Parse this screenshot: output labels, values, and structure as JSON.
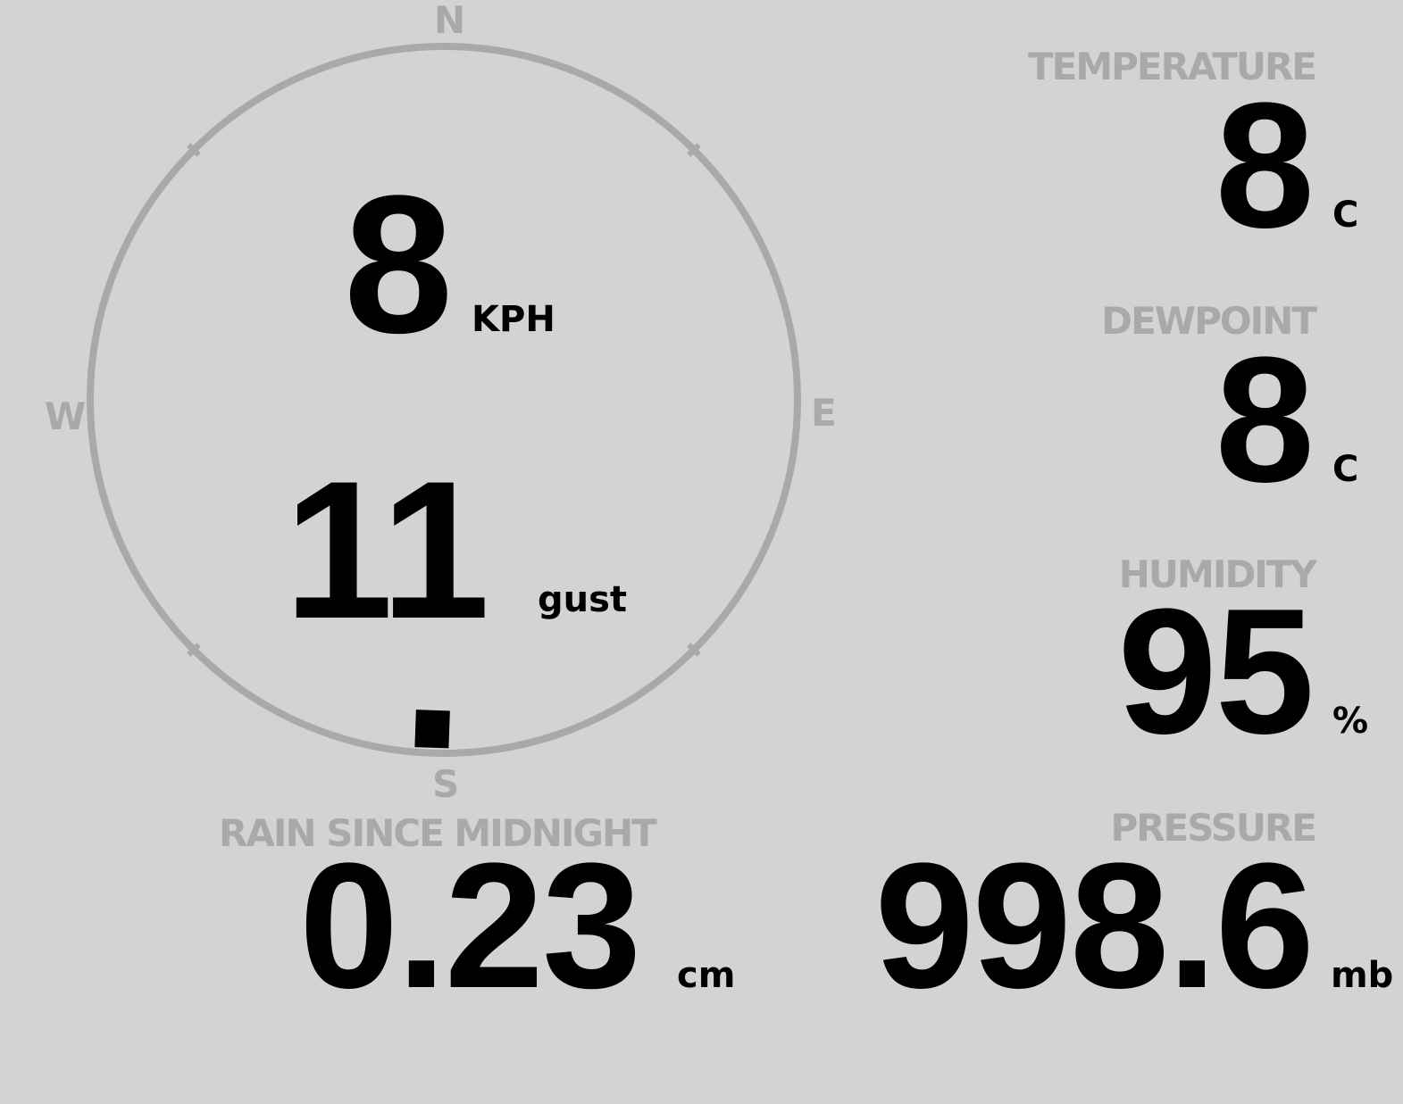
{
  "wind": {
    "speed": "8",
    "speed_unit": "KPH",
    "gust": "11",
    "gust_unit": "gust",
    "direction_degrees": 182,
    "compass": {
      "n": "N",
      "e": "E",
      "s": "S",
      "w": "W"
    }
  },
  "temperature": {
    "label": "TEMPERATURE",
    "value": "8",
    "unit": "C"
  },
  "dewpoint": {
    "label": "DEWPOINT",
    "value": "8",
    "unit": "C"
  },
  "humidity": {
    "label": "HUMIDITY",
    "value": "95",
    "unit": "%"
  },
  "pressure": {
    "label": "PRESSURE",
    "value": "998.6",
    "unit": "mb"
  },
  "rain": {
    "label": "RAIN SINCE MIDNIGHT",
    "value": "0.23",
    "unit": "cm"
  },
  "colors": {
    "background": "#d3d3d3",
    "label": "#a9a9a9",
    "value": "#000000"
  }
}
